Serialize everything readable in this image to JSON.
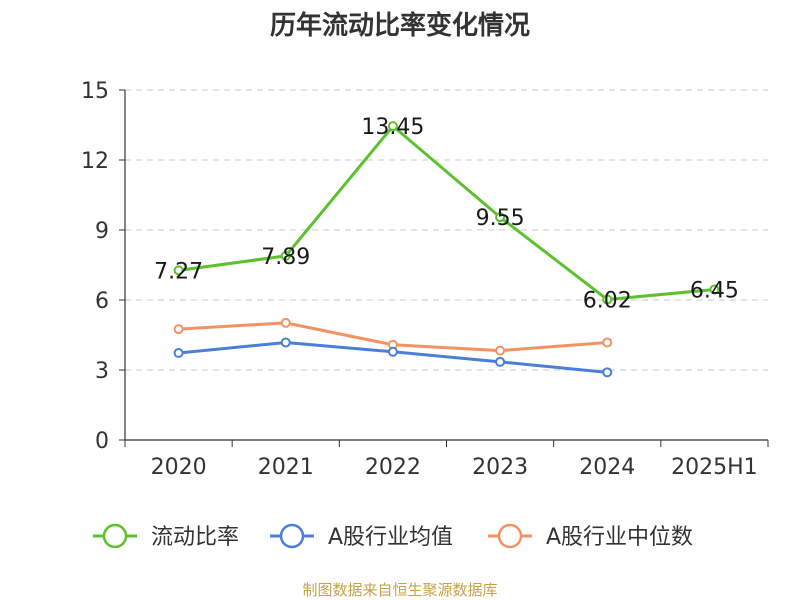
{
  "chart_data": {
    "type": "line",
    "title": "历年流动比率变化情况",
    "categories": [
      "2020",
      "2021",
      "2022",
      "2023",
      "2024",
      "2025H1"
    ],
    "y_ticks": [
      "0",
      "3",
      "6",
      "9",
      "12",
      "15"
    ],
    "ylim": [
      0,
      15
    ],
    "grid": true,
    "legend_placement": "bottom",
    "series": [
      {
        "name": "流动比率",
        "color": "#5cc12d",
        "values": [
          7.27,
          7.89,
          13.45,
          9.55,
          6.02,
          6.45
        ],
        "labels": [
          "7.27",
          "7.89",
          "13.45",
          "9.55",
          "6.02",
          "6.45"
        ]
      },
      {
        "name": "A股行业均值",
        "color": "#4a7fd6",
        "values": [
          3.73,
          4.18,
          3.78,
          3.35,
          2.9,
          null
        ]
      },
      {
        "name": "A股行业中位数",
        "color": "#f49263",
        "values": [
          4.75,
          5.02,
          4.08,
          3.83,
          4.18,
          null
        ]
      }
    ]
  },
  "source": "制图数据来自恒生聚源数据库"
}
